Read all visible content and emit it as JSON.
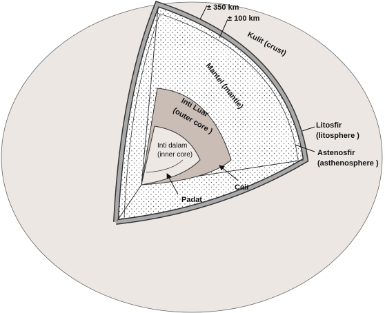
{
  "labels": {
    "thickness_outer": "± 350 km",
    "thickness_inner": "± 100 km",
    "crust": "Kulit (crust)",
    "mantle": "Mantel (mantle)",
    "lithosphere": [
      "Litosfir",
      "(litosphere )"
    ],
    "asthenosphere": [
      "Astenosfir",
      "(asthenosphere )"
    ],
    "outer_core": [
      "Inti Luar",
      "(outer core )"
    ],
    "inner_core": [
      "Inti dalam",
      "(inner core)"
    ],
    "liquid": "Cair",
    "solid": "Padat"
  }
}
